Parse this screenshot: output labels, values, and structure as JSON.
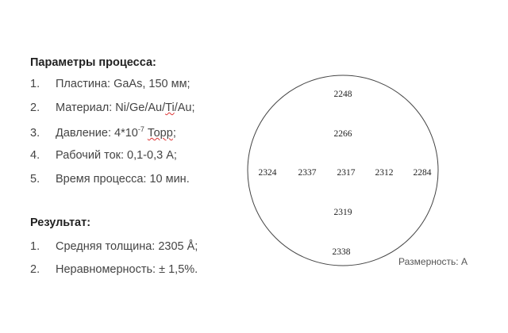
{
  "params": {
    "title": "Параметры процесса:",
    "items": [
      {
        "num": "1.",
        "text": "Пластина: GaAs, 150 мм;"
      },
      {
        "num": "2.",
        "text_pre": "Материал: Ni/Ge/Au/",
        "text_sq": "Ti",
        "text_post": "/Au;"
      },
      {
        "num": "3.",
        "text_pre": "Давление: 4*10",
        "sup": "-7",
        "text_sq": "Торр",
        "text_post": ";"
      },
      {
        "num": "4.",
        "text": "Рабочий ток: 0,1-0,3 А;"
      },
      {
        "num": "5.",
        "text": "Время процесса: 10 мин."
      }
    ]
  },
  "result": {
    "title": "Результат:",
    "items": [
      {
        "num": "1.",
        "text": "Средняя толщина: 2305 Å;"
      },
      {
        "num": "2.",
        "text": "Неравномерность: ± 1,5%."
      }
    ]
  },
  "wafer_map": {
    "unit_label": "Размерность: А",
    "points": [
      {
        "value": "2248",
        "pos": "top"
      },
      {
        "value": "2266",
        "pos": "upper"
      },
      {
        "value": "2324",
        "pos": "far-left"
      },
      {
        "value": "2337",
        "pos": "left"
      },
      {
        "value": "2317",
        "pos": "center"
      },
      {
        "value": "2312",
        "pos": "right"
      },
      {
        "value": "2284",
        "pos": "far-right"
      },
      {
        "value": "2319",
        "pos": "lower"
      },
      {
        "value": "2338",
        "pos": "bottom"
      }
    ]
  }
}
